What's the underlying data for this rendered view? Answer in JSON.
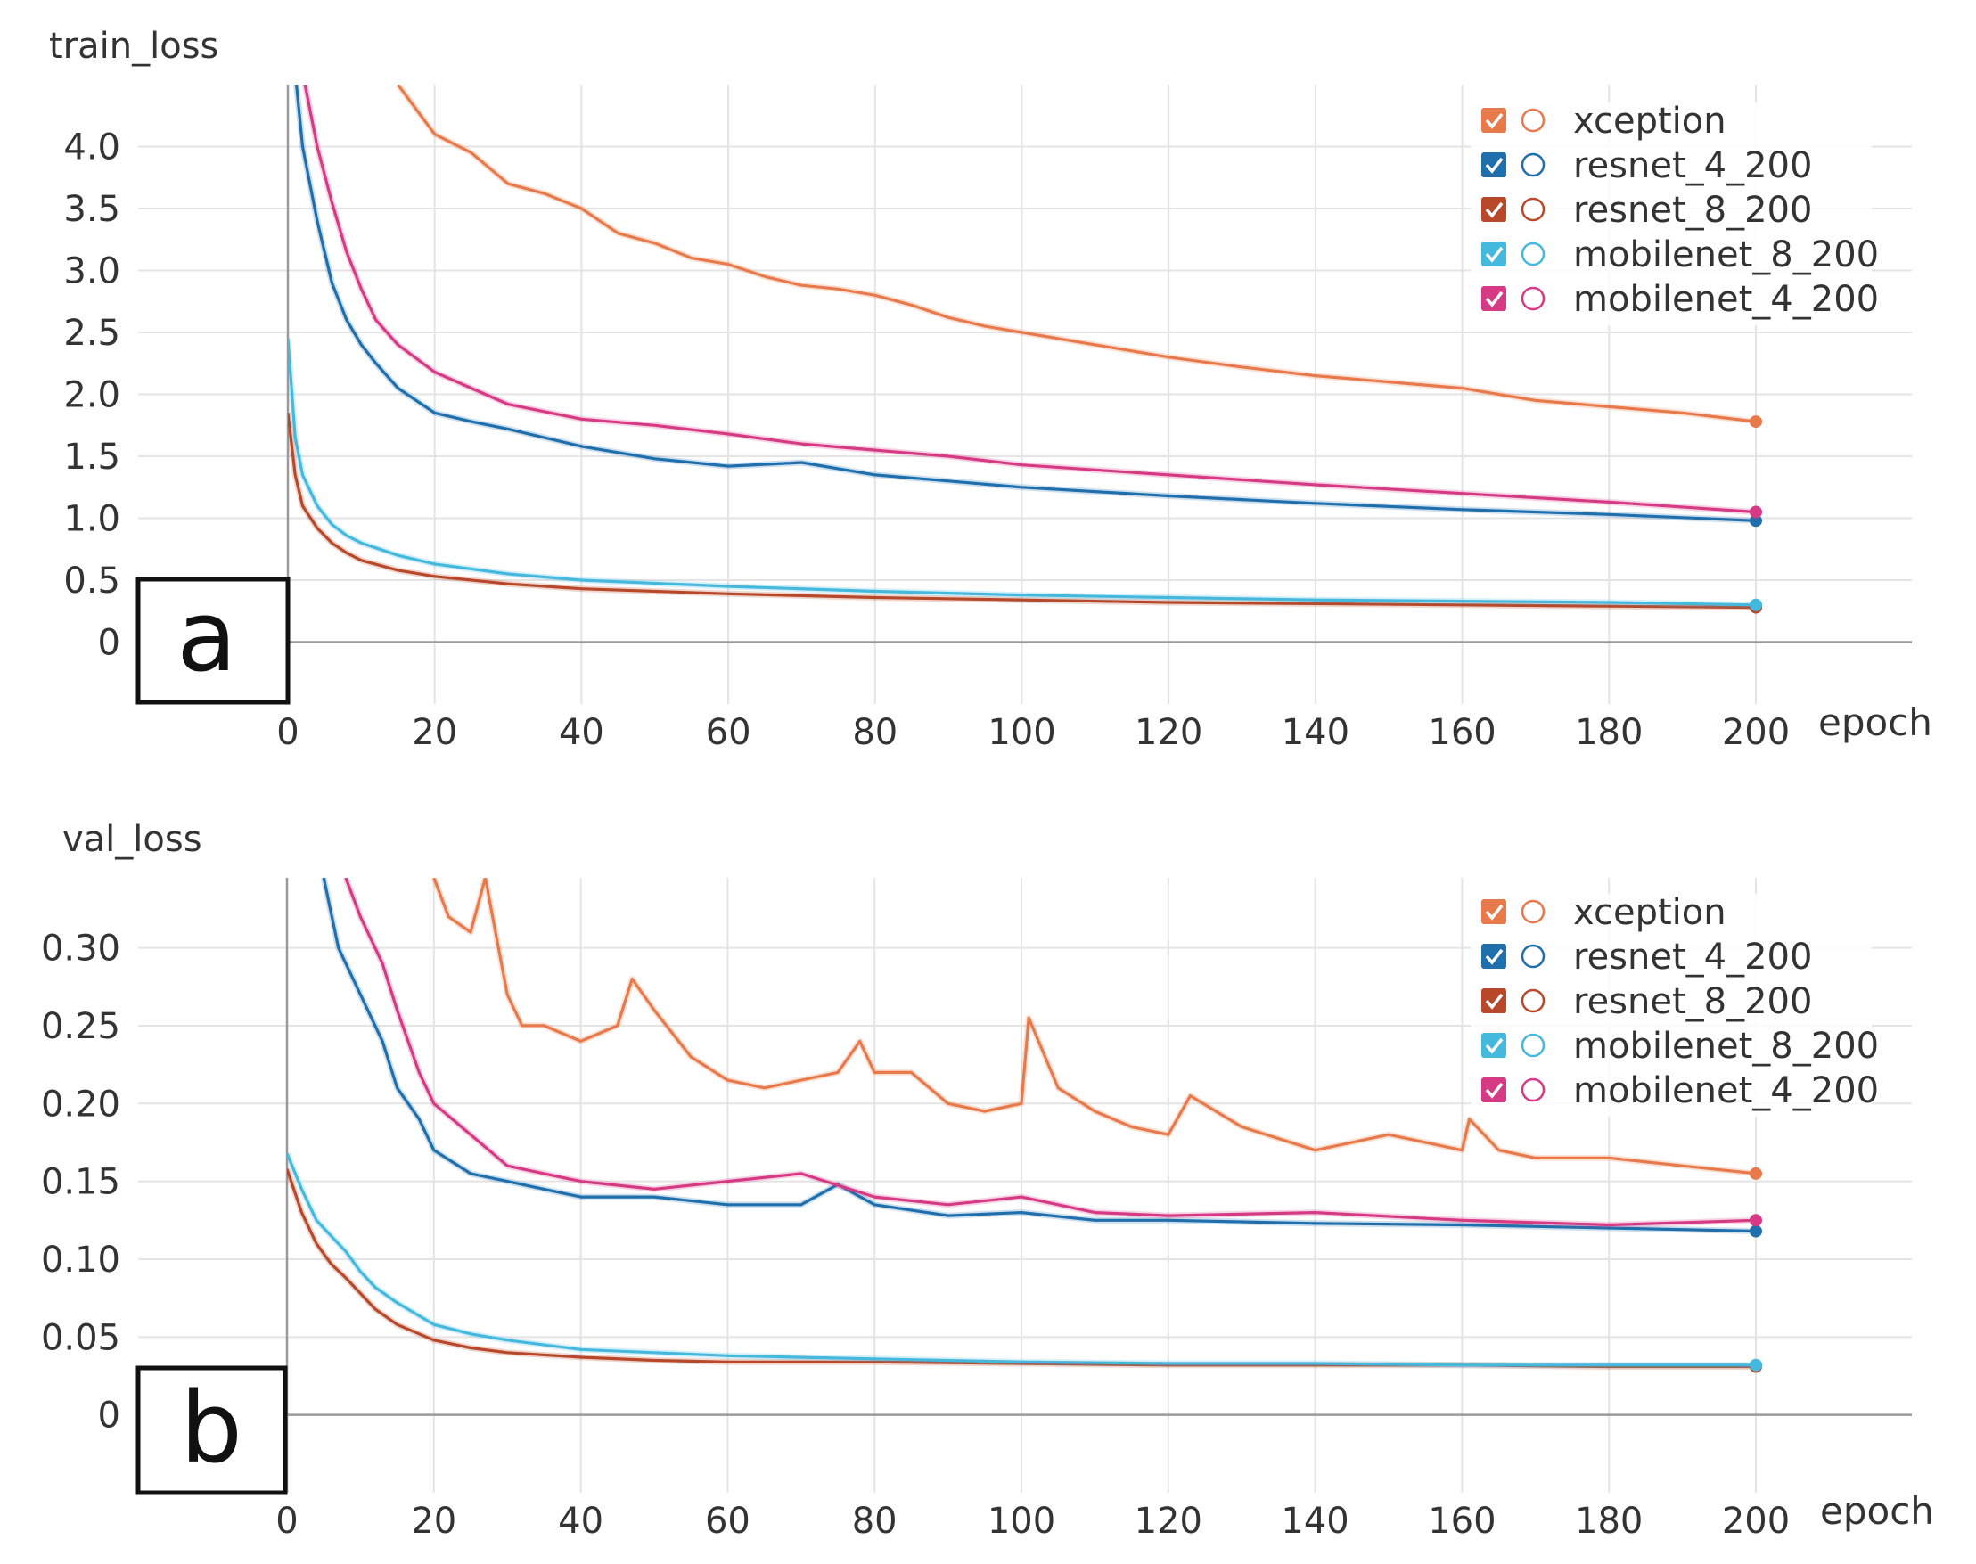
{
  "chart_data": [
    {
      "type": "line",
      "title": "train_loss",
      "panel_label": "a",
      "xlabel": "epoch",
      "ylabel": "train_loss",
      "xlim": [
        0,
        200
      ],
      "ylim": [
        -0.5,
        4.5
      ],
      "x_ticks": [
        0,
        20,
        40,
        60,
        80,
        100,
        120,
        140,
        160,
        180,
        200
      ],
      "x_tick_labels": [
        "0",
        "20",
        "40",
        "60",
        "80",
        "100",
        "120",
        "140",
        "160",
        "180",
        "200"
      ],
      "y_ticks": [
        0,
        0.5,
        1.0,
        1.5,
        2.0,
        2.5,
        3.0,
        3.5,
        4.0
      ],
      "y_tick_labels": [
        "0",
        "0.5",
        "1.0",
        "1.5",
        "2.0",
        "2.5",
        "3.0",
        "3.5",
        "4.0"
      ],
      "grid": true,
      "legend_position": "top-right",
      "series": [
        {
          "name": "xception",
          "color": "#e8794a",
          "x": [
            15,
            20,
            25,
            30,
            35,
            40,
            45,
            50,
            55,
            60,
            65,
            70,
            75,
            80,
            85,
            90,
            95,
            100,
            110,
            120,
            130,
            140,
            150,
            160,
            170,
            180,
            190,
            200
          ],
          "y": [
            4.5,
            4.1,
            3.95,
            3.7,
            3.62,
            3.5,
            3.3,
            3.22,
            3.1,
            3.05,
            2.95,
            2.88,
            2.85,
            2.8,
            2.72,
            2.62,
            2.55,
            2.5,
            2.4,
            2.3,
            2.22,
            2.15,
            2.1,
            2.05,
            1.95,
            1.9,
            1.85,
            1.78
          ]
        },
        {
          "name": "resnet_4_200",
          "color": "#1f6fad",
          "x": [
            1,
            2,
            4,
            6,
            8,
            10,
            12,
            15,
            20,
            25,
            30,
            40,
            50,
            60,
            70,
            80,
            90,
            100,
            120,
            140,
            160,
            180,
            200
          ],
          "y": [
            4.6,
            4.0,
            3.4,
            2.9,
            2.6,
            2.4,
            2.25,
            2.05,
            1.85,
            1.78,
            1.72,
            1.58,
            1.48,
            1.42,
            1.45,
            1.35,
            1.3,
            1.25,
            1.18,
            1.12,
            1.07,
            1.03,
            0.98
          ]
        },
        {
          "name": "resnet_8_200",
          "color": "#b8482a",
          "x": [
            0,
            1,
            2,
            4,
            6,
            8,
            10,
            15,
            20,
            30,
            40,
            60,
            80,
            100,
            120,
            140,
            160,
            180,
            200
          ],
          "y": [
            1.85,
            1.35,
            1.1,
            0.92,
            0.8,
            0.72,
            0.66,
            0.58,
            0.53,
            0.47,
            0.43,
            0.39,
            0.36,
            0.34,
            0.32,
            0.31,
            0.3,
            0.29,
            0.28
          ]
        },
        {
          "name": "mobilenet_8_200",
          "color": "#45b8dd",
          "x": [
            0,
            1,
            2,
            4,
            6,
            8,
            10,
            15,
            20,
            30,
            40,
            60,
            80,
            100,
            120,
            140,
            160,
            180,
            200
          ],
          "y": [
            2.45,
            1.65,
            1.35,
            1.1,
            0.95,
            0.86,
            0.8,
            0.7,
            0.63,
            0.55,
            0.5,
            0.45,
            0.41,
            0.38,
            0.36,
            0.34,
            0.33,
            0.32,
            0.3
          ]
        },
        {
          "name": "mobilenet_4_200",
          "color": "#d63a85",
          "x": [
            2,
            4,
            6,
            8,
            10,
            12,
            15,
            20,
            25,
            30,
            40,
            50,
            60,
            70,
            80,
            90,
            100,
            120,
            140,
            160,
            180,
            200
          ],
          "y": [
            4.6,
            4.0,
            3.55,
            3.15,
            2.85,
            2.6,
            2.4,
            2.18,
            2.05,
            1.92,
            1.8,
            1.75,
            1.68,
            1.6,
            1.55,
            1.5,
            1.43,
            1.35,
            1.27,
            1.2,
            1.13,
            1.05
          ]
        }
      ]
    },
    {
      "type": "line",
      "title": "val_loss",
      "panel_label": "b",
      "xlabel": "epoch",
      "ylabel": "val_loss",
      "xlim": [
        0,
        200
      ],
      "ylim": [
        -0.05,
        0.345
      ],
      "x_ticks": [
        0,
        20,
        40,
        60,
        80,
        100,
        120,
        140,
        160,
        180,
        200
      ],
      "x_tick_labels": [
        "0",
        "20",
        "40",
        "60",
        "80",
        "100",
        "120",
        "140",
        "160",
        "180",
        "200"
      ],
      "y_ticks": [
        0,
        0.05,
        0.1,
        0.15,
        0.2,
        0.25,
        0.3
      ],
      "y_tick_labels": [
        "0",
        "0.05",
        "0.10",
        "0.15",
        "0.20",
        "0.25",
        "0.30"
      ],
      "grid": true,
      "legend_position": "top-right",
      "series": [
        {
          "name": "xception",
          "color": "#e8794a",
          "x": [
            20,
            22,
            25,
            27,
            28,
            30,
            32,
            35,
            40,
            45,
            47,
            50,
            55,
            60,
            65,
            70,
            75,
            78,
            80,
            85,
            90,
            95,
            100,
            101,
            105,
            110,
            115,
            120,
            123,
            130,
            140,
            150,
            160,
            161,
            165,
            170,
            180,
            190,
            200
          ],
          "y": [
            0.345,
            0.32,
            0.31,
            0.345,
            0.32,
            0.27,
            0.25,
            0.25,
            0.24,
            0.25,
            0.28,
            0.26,
            0.23,
            0.215,
            0.21,
            0.215,
            0.22,
            0.24,
            0.22,
            0.22,
            0.2,
            0.195,
            0.2,
            0.255,
            0.21,
            0.195,
            0.185,
            0.18,
            0.205,
            0.185,
            0.17,
            0.18,
            0.17,
            0.19,
            0.17,
            0.165,
            0.165,
            0.16,
            0.155
          ]
        },
        {
          "name": "resnet_4_200",
          "color": "#1f6fad",
          "x": [
            5,
            7,
            10,
            13,
            15,
            18,
            20,
            25,
            30,
            35,
            40,
            50,
            60,
            70,
            75,
            80,
            90,
            100,
            110,
            120,
            140,
            160,
            180,
            200
          ],
          "y": [
            0.345,
            0.3,
            0.27,
            0.24,
            0.21,
            0.19,
            0.17,
            0.155,
            0.15,
            0.145,
            0.14,
            0.14,
            0.135,
            0.135,
            0.148,
            0.135,
            0.128,
            0.13,
            0.125,
            0.125,
            0.123,
            0.122,
            0.12,
            0.118
          ]
        },
        {
          "name": "resnet_8_200",
          "color": "#b8482a",
          "x": [
            0,
            2,
            4,
            6,
            8,
            10,
            12,
            15,
            20,
            25,
            30,
            40,
            50,
            60,
            80,
            100,
            120,
            140,
            160,
            180,
            200
          ],
          "y": [
            0.158,
            0.13,
            0.11,
            0.097,
            0.088,
            0.078,
            0.068,
            0.058,
            0.048,
            0.043,
            0.04,
            0.037,
            0.035,
            0.034,
            0.034,
            0.033,
            0.032,
            0.032,
            0.032,
            0.031,
            0.031
          ]
        },
        {
          "name": "mobilenet_8_200",
          "color": "#45b8dd",
          "x": [
            0,
            2,
            4,
            6,
            8,
            10,
            12,
            15,
            20,
            25,
            30,
            40,
            50,
            60,
            80,
            100,
            120,
            140,
            160,
            180,
            200
          ],
          "y": [
            0.168,
            0.145,
            0.125,
            0.115,
            0.105,
            0.092,
            0.082,
            0.072,
            0.058,
            0.052,
            0.048,
            0.042,
            0.04,
            0.038,
            0.036,
            0.034,
            0.033,
            0.033,
            0.032,
            0.032,
            0.032
          ]
        },
        {
          "name": "mobilenet_4_200",
          "color": "#d63a85",
          "x": [
            8,
            10,
            13,
            15,
            18,
            20,
            25,
            30,
            35,
            40,
            50,
            60,
            70,
            80,
            90,
            100,
            110,
            120,
            140,
            160,
            180,
            200
          ],
          "y": [
            0.345,
            0.32,
            0.29,
            0.26,
            0.22,
            0.2,
            0.18,
            0.16,
            0.155,
            0.15,
            0.145,
            0.15,
            0.155,
            0.14,
            0.135,
            0.14,
            0.13,
            0.128,
            0.13,
            0.125,
            0.122,
            0.125
          ]
        }
      ]
    }
  ]
}
